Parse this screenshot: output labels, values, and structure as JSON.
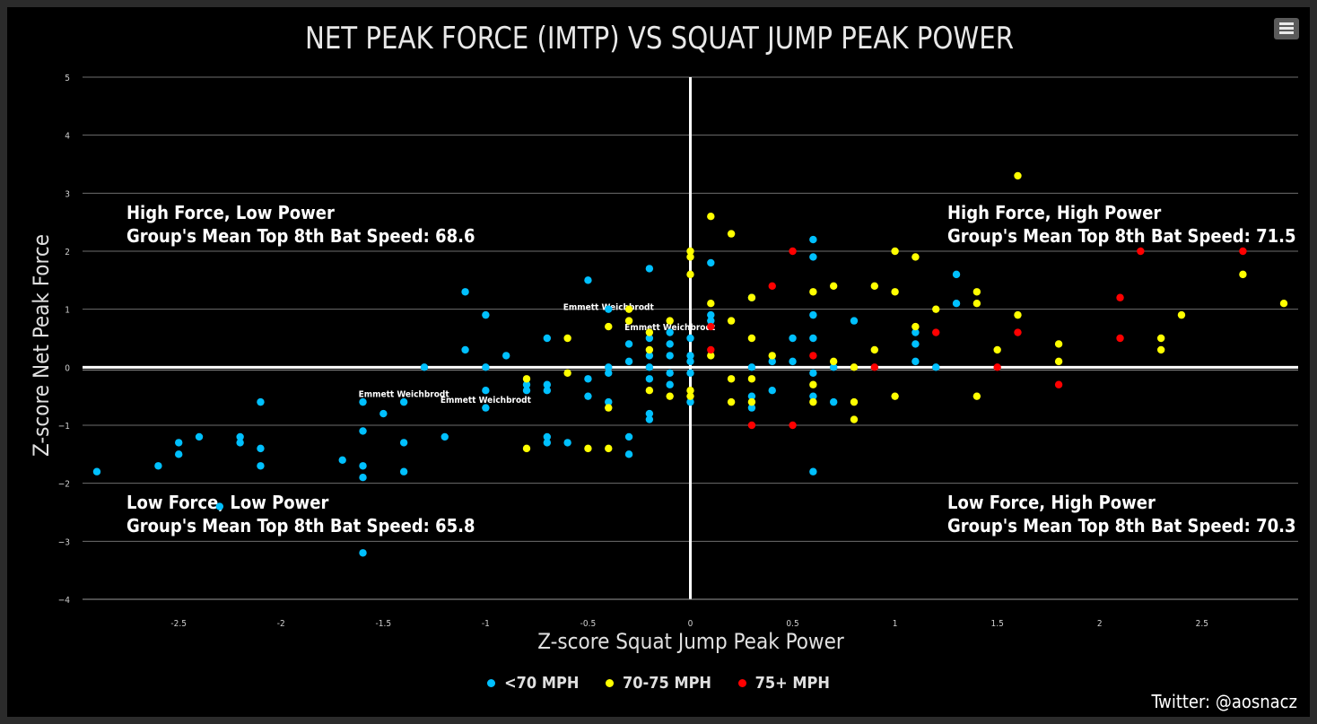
{
  "colors": {
    "lt70": "#00c0ff",
    "mid": "#ffff00",
    "high": "#ff0000",
    "background": "#000000",
    "grid": "#6e6e6e",
    "text": "#e0e0e0"
  },
  "menu": {
    "icon": "hamburger-menu-icon"
  },
  "credit": "Twitter: @aosnacz",
  "legend": [
    {
      "label": "<70 MPH",
      "color": "#00c0ff"
    },
    {
      "label": "70-75 MPH",
      "color": "#ffff00"
    },
    {
      "label": "75+ MPH",
      "color": "#ff0000"
    }
  ],
  "chart_data": {
    "type": "scatter",
    "title": "NET PEAK FORCE (IMTP) VS SQUAT JUMP PEAK POWER",
    "xlabel": "Z-score Squat Jump Peak Power",
    "ylabel": "Z-score Net Peak Force",
    "xlim": [
      -2.97,
      2.97
    ],
    "ylim": [
      -4,
      5
    ],
    "xticks": [
      -2.5,
      -2,
      -1.5,
      -1,
      -0.5,
      0,
      0.5,
      1,
      1.5,
      2,
      2.5
    ],
    "xtick_labels": [
      "-2.5",
      "-2",
      "-1.5",
      "-1",
      "-0.5",
      "0",
      "0.5",
      "1",
      "1.5",
      "2",
      "2.5"
    ],
    "yticks": [
      5,
      4,
      3,
      2,
      1,
      0,
      -1,
      -2,
      -3,
      -4
    ],
    "ytick_labels": [
      "5",
      "4",
      "3",
      "2",
      "1",
      "0",
      "−1",
      "−2",
      "−3",
      "−4"
    ],
    "grid": true,
    "legend_position": "bottom-center",
    "quadrants": [
      {
        "line1": "High Force, Low Power",
        "line2": "Group's Mean Top 8th Bat Speed: 68.6",
        "position": "top-left"
      },
      {
        "line1": "High Force, High Power",
        "line2": "Group's Mean Top 8th Bat Speed: 71.5",
        "position": "top-right"
      },
      {
        "line1": "Low Force, Low Power",
        "line2": "Group's Mean Top 8th Bat Speed: 65.8",
        "position": "bottom-left"
      },
      {
        "line1": "Low Force, High Power",
        "line2": "Group's Mean Top 8th Bat Speed: 70.3",
        "position": "bottom-right"
      }
    ],
    "annotations": [
      {
        "text": "Emmett Weichbrodt",
        "x": -0.4,
        "y": 1.05
      },
      {
        "text": "Emmett Weichbrodt",
        "x": -0.1,
        "y": 0.7
      },
      {
        "text": "Emmett Weichbrodt",
        "x": -1.4,
        "y": -0.45
      },
      {
        "text": "Emmett Weichbrodt",
        "x": -1.0,
        "y": -0.55
      }
    ],
    "series": [
      {
        "name": "<70 MPH",
        "color": "#00c0ff",
        "points": [
          [
            -2.9,
            -1.8
          ],
          [
            -2.6,
            -1.7
          ],
          [
            -2.5,
            -1.3
          ],
          [
            -2.5,
            -1.5
          ],
          [
            -2.4,
            -1.2
          ],
          [
            -2.2,
            -1.2
          ],
          [
            -2.2,
            -1.3
          ],
          [
            -2.1,
            -0.6
          ],
          [
            -2.1,
            -1.4
          ],
          [
            -2.1,
            -1.7
          ],
          [
            -2.3,
            -2.4
          ],
          [
            -1.7,
            -1.6
          ],
          [
            -1.6,
            -0.6
          ],
          [
            -1.6,
            -1.1
          ],
          [
            -1.6,
            -1.7
          ],
          [
            -1.6,
            -1.9
          ],
          [
            -1.6,
            -3.2
          ],
          [
            -1.5,
            -0.8
          ],
          [
            -1.4,
            -0.6
          ],
          [
            -1.4,
            -1.3
          ],
          [
            -1.4,
            -1.8
          ],
          [
            -1.3,
            0.0
          ],
          [
            -1.2,
            -1.2
          ],
          [
            -1.1,
            1.3
          ],
          [
            -1.1,
            0.3
          ],
          [
            -1.0,
            0.9
          ],
          [
            -1.0,
            0.0
          ],
          [
            -1.0,
            -0.4
          ],
          [
            -1.0,
            -0.7
          ],
          [
            -0.9,
            0.2
          ],
          [
            -0.8,
            -0.3
          ],
          [
            -0.8,
            -0.4
          ],
          [
            -0.7,
            0.5
          ],
          [
            -0.7,
            -0.3
          ],
          [
            -0.7,
            -0.4
          ],
          [
            -0.7,
            -1.2
          ],
          [
            -0.7,
            -1.3
          ],
          [
            -0.6,
            -1.3
          ],
          [
            -0.5,
            1.5
          ],
          [
            -0.5,
            -0.2
          ],
          [
            -0.5,
            -0.5
          ],
          [
            -0.4,
            1.0
          ],
          [
            -0.4,
            0.0
          ],
          [
            -0.4,
            -0.1
          ],
          [
            -0.4,
            -0.6
          ],
          [
            -0.3,
            0.4
          ],
          [
            -0.3,
            0.1
          ],
          [
            -0.3,
            -1.2
          ],
          [
            -0.3,
            -1.5
          ],
          [
            -0.2,
            1.7
          ],
          [
            -0.2,
            0.5
          ],
          [
            -0.2,
            0.2
          ],
          [
            -0.2,
            0.0
          ],
          [
            -0.2,
            -0.2
          ],
          [
            -0.2,
            -0.8
          ],
          [
            -0.2,
            -0.9
          ],
          [
            -0.1,
            0.6
          ],
          [
            -0.1,
            0.4
          ],
          [
            -0.1,
            0.2
          ],
          [
            -0.1,
            -0.1
          ],
          [
            -0.1,
            -0.3
          ],
          [
            0.0,
            0.5
          ],
          [
            0.0,
            0.2
          ],
          [
            0.0,
            0.1
          ],
          [
            0.0,
            -0.1
          ],
          [
            0.0,
            -0.6
          ],
          [
            0.1,
            1.8
          ],
          [
            0.1,
            0.9
          ],
          [
            0.1,
            0.8
          ],
          [
            0.3,
            1.2
          ],
          [
            0.3,
            0.0
          ],
          [
            0.3,
            -0.5
          ],
          [
            0.3,
            -0.7
          ],
          [
            0.4,
            0.1
          ],
          [
            0.4,
            -0.4
          ],
          [
            0.5,
            0.5
          ],
          [
            0.5,
            0.1
          ],
          [
            0.6,
            2.2
          ],
          [
            0.6,
            1.9
          ],
          [
            0.6,
            0.9
          ],
          [
            0.6,
            0.5
          ],
          [
            0.6,
            -0.1
          ],
          [
            0.6,
            -0.5
          ],
          [
            0.6,
            -1.8
          ],
          [
            0.7,
            0.0
          ],
          [
            0.7,
            -0.6
          ],
          [
            0.8,
            0.8
          ],
          [
            1.1,
            0.6
          ],
          [
            1.1,
            0.4
          ],
          [
            1.1,
            0.1
          ],
          [
            1.2,
            0.0
          ],
          [
            1.3,
            1.6
          ],
          [
            1.3,
            1.1
          ]
        ]
      },
      {
        "name": "70-75 MPH",
        "color": "#ffff00",
        "points": [
          [
            -0.8,
            -0.2
          ],
          [
            -0.8,
            -1.4
          ],
          [
            -0.6,
            0.5
          ],
          [
            -0.6,
            -0.1
          ],
          [
            -0.5,
            -1.4
          ],
          [
            -0.4,
            0.7
          ],
          [
            -0.4,
            -0.7
          ],
          [
            -0.4,
            -1.4
          ],
          [
            -0.3,
            1.0
          ],
          [
            -0.3,
            0.8
          ],
          [
            -0.2,
            0.6
          ],
          [
            -0.2,
            0.3
          ],
          [
            -0.2,
            -0.4
          ],
          [
            -0.1,
            0.8
          ],
          [
            -0.1,
            -0.5
          ],
          [
            0.0,
            2.0
          ],
          [
            0.0,
            1.9
          ],
          [
            0.0,
            1.6
          ],
          [
            0.0,
            -0.4
          ],
          [
            0.0,
            -0.5
          ],
          [
            0.1,
            2.6
          ],
          [
            0.1,
            1.1
          ],
          [
            0.1,
            0.2
          ],
          [
            0.2,
            2.3
          ],
          [
            0.2,
            0.8
          ],
          [
            0.2,
            -0.2
          ],
          [
            0.2,
            -0.6
          ],
          [
            0.3,
            1.2
          ],
          [
            0.3,
            0.5
          ],
          [
            0.3,
            -0.2
          ],
          [
            0.3,
            -0.6
          ],
          [
            0.4,
            0.2
          ],
          [
            0.6,
            1.3
          ],
          [
            0.6,
            -0.3
          ],
          [
            0.6,
            -0.6
          ],
          [
            0.7,
            1.4
          ],
          [
            0.7,
            0.1
          ],
          [
            0.8,
            0.0
          ],
          [
            0.8,
            -0.6
          ],
          [
            0.8,
            -0.9
          ],
          [
            0.9,
            1.4
          ],
          [
            0.9,
            0.3
          ],
          [
            1.0,
            2.0
          ],
          [
            1.0,
            1.3
          ],
          [
            1.0,
            -0.5
          ],
          [
            1.1,
            1.9
          ],
          [
            1.1,
            0.7
          ],
          [
            1.2,
            1.0
          ],
          [
            1.4,
            1.3
          ],
          [
            1.4,
            1.1
          ],
          [
            1.4,
            -0.5
          ],
          [
            1.5,
            0.3
          ],
          [
            1.6,
            3.3
          ],
          [
            1.6,
            0.9
          ],
          [
            1.8,
            0.4
          ],
          [
            1.8,
            0.1
          ],
          [
            2.3,
            0.5
          ],
          [
            2.3,
            0.3
          ],
          [
            2.4,
            0.9
          ],
          [
            2.7,
            1.6
          ],
          [
            2.9,
            1.1
          ]
        ]
      },
      {
        "name": "75+ MPH",
        "color": "#ff0000",
        "points": [
          [
            0.1,
            0.7
          ],
          [
            0.1,
            0.3
          ],
          [
            0.3,
            -1.0
          ],
          [
            0.4,
            1.4
          ],
          [
            0.5,
            2.0
          ],
          [
            0.5,
            -1.0
          ],
          [
            0.6,
            0.2
          ],
          [
            0.9,
            0.0
          ],
          [
            1.2,
            0.6
          ],
          [
            1.5,
            0.0
          ],
          [
            1.6,
            0.6
          ],
          [
            1.8,
            -0.3
          ],
          [
            2.1,
            1.2
          ],
          [
            2.1,
            0.5
          ],
          [
            2.2,
            2.0
          ],
          [
            2.7,
            2.0
          ]
        ]
      }
    ]
  }
}
